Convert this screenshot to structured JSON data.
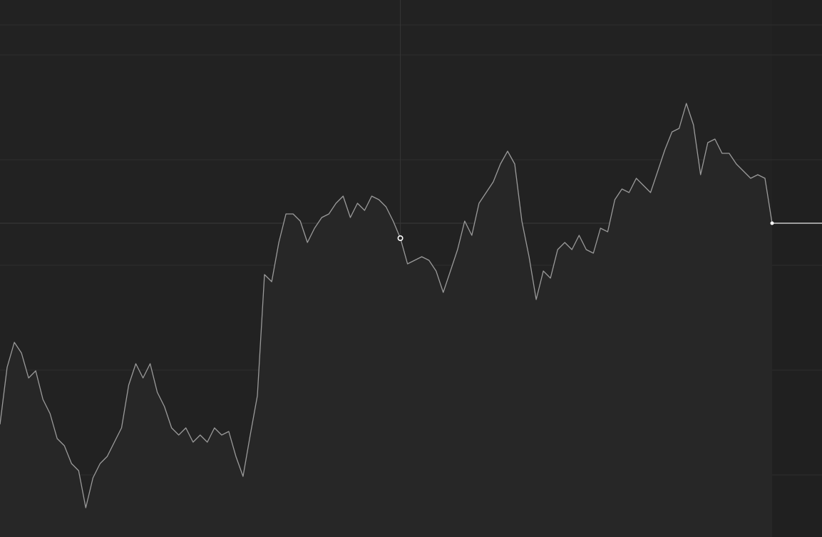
{
  "chart_data": {
    "type": "line",
    "color": "#9a9a9a",
    "values": [
      158,
      238,
      273,
      258,
      223,
      233,
      193,
      173,
      138,
      128,
      103,
      93,
      41,
      83,
      103,
      113,
      133,
      153,
      213,
      243,
      223,
      243,
      203,
      183,
      153,
      143,
      153,
      133,
      143,
      133,
      153,
      143,
      148,
      113,
      85,
      143,
      198,
      368,
      358,
      413,
      453,
      453,
      443,
      413,
      433,
      448,
      453,
      468,
      478,
      448,
      468,
      458,
      478,
      473,
      463,
      443,
      419,
      383,
      388,
      393,
      388,
      373,
      343,
      373,
      403,
      443,
      423,
      468,
      483,
      498,
      523,
      541,
      523,
      443,
      393,
      333,
      373,
      363,
      403,
      413,
      403,
      423,
      403,
      398,
      433,
      428,
      473,
      488,
      483,
      503,
      493,
      483,
      513,
      543,
      568,
      573,
      608,
      578,
      508,
      553,
      558,
      538,
      538,
      523,
      513,
      503,
      508,
      503,
      440
    ],
    "ylim": [
      0,
      753
    ],
    "yticks": [
      87,
      234,
      381,
      529,
      676,
      718
    ],
    "grid": true,
    "reference_value": 440,
    "highlight_index": 56
  }
}
